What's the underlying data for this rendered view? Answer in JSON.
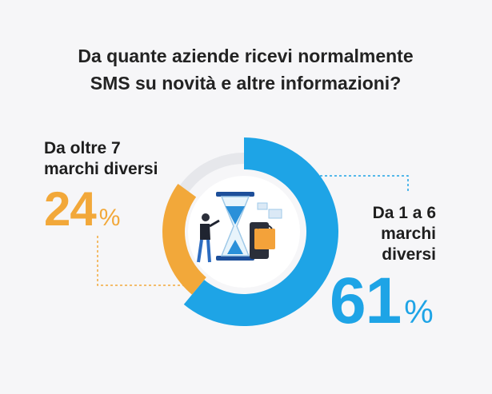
{
  "chart_data": {
    "type": "donut",
    "title": [
      "Da quante aziende ricevi normalmente",
      "SMS su novità e altre informazioni?"
    ],
    "categories": [
      "Da 1 a 6 marchi diversi",
      "Da oltre 7 marchi diversi"
    ],
    "values": [
      61,
      24
    ],
    "value_labels": [
      "61%",
      "24%"
    ],
    "colors": [
      "#1ea4e6",
      "#f2a83a"
    ]
  }
}
